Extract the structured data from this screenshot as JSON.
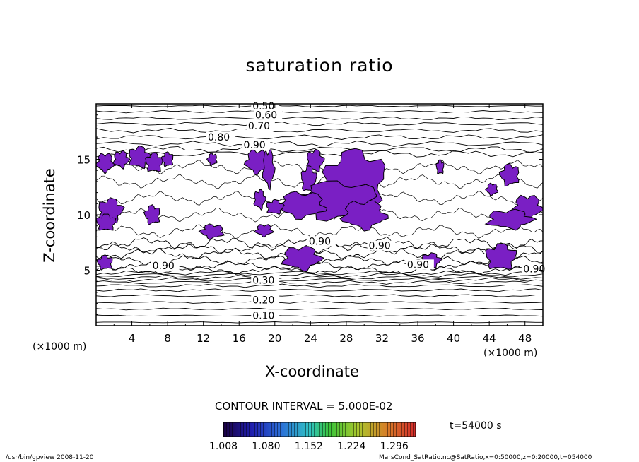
{
  "chart_data": {
    "type": "contour",
    "title": "saturation ratio",
    "xlabel": "X-coordinate",
    "ylabel": "Z-coordinate",
    "x_unit": "(×1000 m)",
    "y_unit": "(×1000 m)",
    "xlim": [
      0,
      50
    ],
    "ylim": [
      0,
      20
    ],
    "x_ticks": [
      "4",
      "8",
      "12",
      "16",
      "20",
      "24",
      "28",
      "32",
      "36",
      "40",
      "44",
      "48"
    ],
    "y_ticks": [
      "5",
      "10",
      "15"
    ],
    "contour_interval_label": "CONTOUR INTERVAL = 5.000E-02",
    "contour_labels": [
      {
        "text": "0.50",
        "x": 17.5,
        "z": 19.5
      },
      {
        "text": "0.60",
        "x": 17.8,
        "z": 18.7
      },
      {
        "text": "0.70",
        "x": 17.0,
        "z": 17.7
      },
      {
        "text": "0.80",
        "x": 12.5,
        "z": 16.7
      },
      {
        "text": "0.90",
        "x": 16.5,
        "z": 16.0
      },
      {
        "text": "0.90",
        "x": 23.8,
        "z": 7.3
      },
      {
        "text": "0.90",
        "x": 30.5,
        "z": 6.9
      },
      {
        "text": "0.90",
        "x": 6.3,
        "z": 5.1
      },
      {
        "text": "0.90",
        "x": 34.8,
        "z": 5.2
      },
      {
        "text": "0.90",
        "x": 47.8,
        "z": 4.8
      },
      {
        "text": "0.30",
        "x": 17.5,
        "z": 3.8
      },
      {
        "text": "0.20",
        "x": 17.5,
        "z": 2.0
      },
      {
        "text": "0.10",
        "x": 17.5,
        "z": 0.6
      }
    ],
    "colorbar": {
      "tick_labels": [
        "1.008",
        "1.080",
        "1.152",
        "1.224",
        "1.296"
      ],
      "range": [
        1.008,
        1.332
      ]
    },
    "supersaturated_regions": [
      {
        "x": 1.0,
        "z": 14.7,
        "rx": 0.9,
        "rz": 0.8
      },
      {
        "x": 2.8,
        "z": 15.0,
        "rx": 0.8,
        "rz": 0.7
      },
      {
        "x": 4.8,
        "z": 15.2,
        "rx": 1.1,
        "rz": 0.9
      },
      {
        "x": 6.5,
        "z": 14.7,
        "rx": 0.9,
        "rz": 0.8
      },
      {
        "x": 8.0,
        "z": 15.0,
        "rx": 0.6,
        "rz": 0.6
      },
      {
        "x": 13.0,
        "z": 15.0,
        "rx": 0.5,
        "rz": 0.5
      },
      {
        "x": 18.0,
        "z": 14.8,
        "rx": 1.2,
        "rz": 1.0
      },
      {
        "x": 19.3,
        "z": 14.2,
        "rx": 0.6,
        "rz": 1.6
      },
      {
        "x": 24.5,
        "z": 14.9,
        "rx": 0.9,
        "rz": 0.9
      },
      {
        "x": 23.8,
        "z": 13.2,
        "rx": 0.8,
        "rz": 1.1
      },
      {
        "x": 29.0,
        "z": 13.2,
        "rx": 3.2,
        "rz": 2.5
      },
      {
        "x": 27.0,
        "z": 11.3,
        "rx": 4.5,
        "rz": 1.6
      },
      {
        "x": 23.0,
        "z": 10.9,
        "rx": 2.5,
        "rz": 1.1
      },
      {
        "x": 30.0,
        "z": 10.0,
        "rx": 2.3,
        "rz": 1.2
      },
      {
        "x": 18.3,
        "z": 11.4,
        "rx": 0.6,
        "rz": 0.8
      },
      {
        "x": 20.0,
        "z": 10.7,
        "rx": 0.9,
        "rz": 0.6
      },
      {
        "x": 38.5,
        "z": 14.3,
        "rx": 0.4,
        "rz": 0.6
      },
      {
        "x": 46.3,
        "z": 13.6,
        "rx": 1.0,
        "rz": 0.9
      },
      {
        "x": 44.3,
        "z": 12.3,
        "rx": 0.6,
        "rz": 0.5
      },
      {
        "x": 48.3,
        "z": 10.7,
        "rx": 1.5,
        "rz": 1.0
      },
      {
        "x": 46.3,
        "z": 9.6,
        "rx": 2.4,
        "rz": 0.8
      },
      {
        "x": 1.6,
        "z": 10.4,
        "rx": 1.3,
        "rz": 1.0
      },
      {
        "x": 1.1,
        "z": 9.3,
        "rx": 1.0,
        "rz": 0.7
      },
      {
        "x": 6.3,
        "z": 10.0,
        "rx": 0.8,
        "rz": 0.8
      },
      {
        "x": 13.0,
        "z": 8.5,
        "rx": 1.2,
        "rz": 0.6
      },
      {
        "x": 18.8,
        "z": 8.6,
        "rx": 0.9,
        "rz": 0.5
      },
      {
        "x": 23.0,
        "z": 6.1,
        "rx": 2.0,
        "rz": 1.0
      },
      {
        "x": 37.5,
        "z": 5.9,
        "rx": 1.0,
        "rz": 0.6
      },
      {
        "x": 45.3,
        "z": 6.2,
        "rx": 1.6,
        "rz": 1.1
      },
      {
        "x": 1.0,
        "z": 5.7,
        "rx": 0.8,
        "rz": 0.6
      }
    ]
  },
  "time_label": "t=54000 s",
  "footer_left": "/usr/bin/gpview  2008-11-20",
  "footer_right": "MarsCond_SatRatio.nc@SatRatio,x=0:50000,z=0:20000,t=054000"
}
